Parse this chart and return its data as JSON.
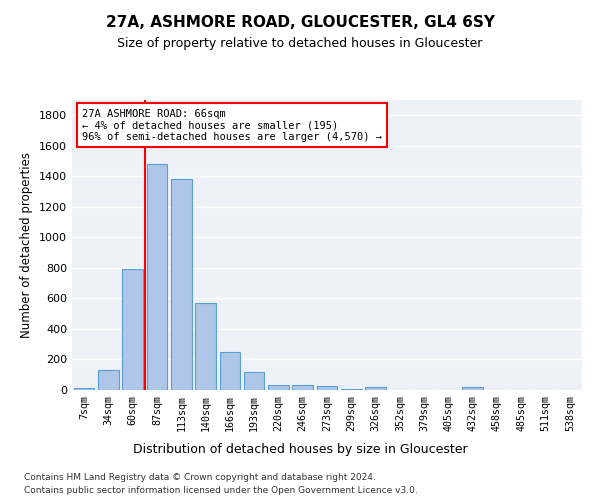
{
  "title1": "27A, ASHMORE ROAD, GLOUCESTER, GL4 6SY",
  "title2": "Size of property relative to detached houses in Gloucester",
  "xlabel": "Distribution of detached houses by size in Gloucester",
  "ylabel": "Number of detached properties",
  "footnote1": "Contains HM Land Registry data © Crown copyright and database right 2024.",
  "footnote2": "Contains public sector information licensed under the Open Government Licence v3.0.",
  "bar_labels": [
    "7sqm",
    "34sqm",
    "60sqm",
    "87sqm",
    "113sqm",
    "140sqm",
    "166sqm",
    "193sqm",
    "220sqm",
    "246sqm",
    "273sqm",
    "299sqm",
    "326sqm",
    "352sqm",
    "379sqm",
    "405sqm",
    "432sqm",
    "458sqm",
    "485sqm",
    "511sqm",
    "538sqm"
  ],
  "bar_values": [
    10,
    130,
    795,
    1480,
    1385,
    570,
    250,
    115,
    35,
    30,
    28,
    5,
    18,
    0,
    0,
    0,
    20,
    0,
    0,
    0,
    0
  ],
  "bar_color": "#aec6e8",
  "bar_edge_color": "#5a9fd4",
  "ylim": [
    0,
    1900
  ],
  "yticks": [
    0,
    200,
    400,
    600,
    800,
    1000,
    1200,
    1400,
    1600,
    1800
  ],
  "annotation_line1": "27A ASHMORE ROAD: 66sqm",
  "annotation_line2": "← 4% of detached houses are smaller (195)",
  "annotation_line3": "96% of semi-detached houses are larger (4,570) →",
  "vline_x": 2.5,
  "background_color": "#eef2f8"
}
